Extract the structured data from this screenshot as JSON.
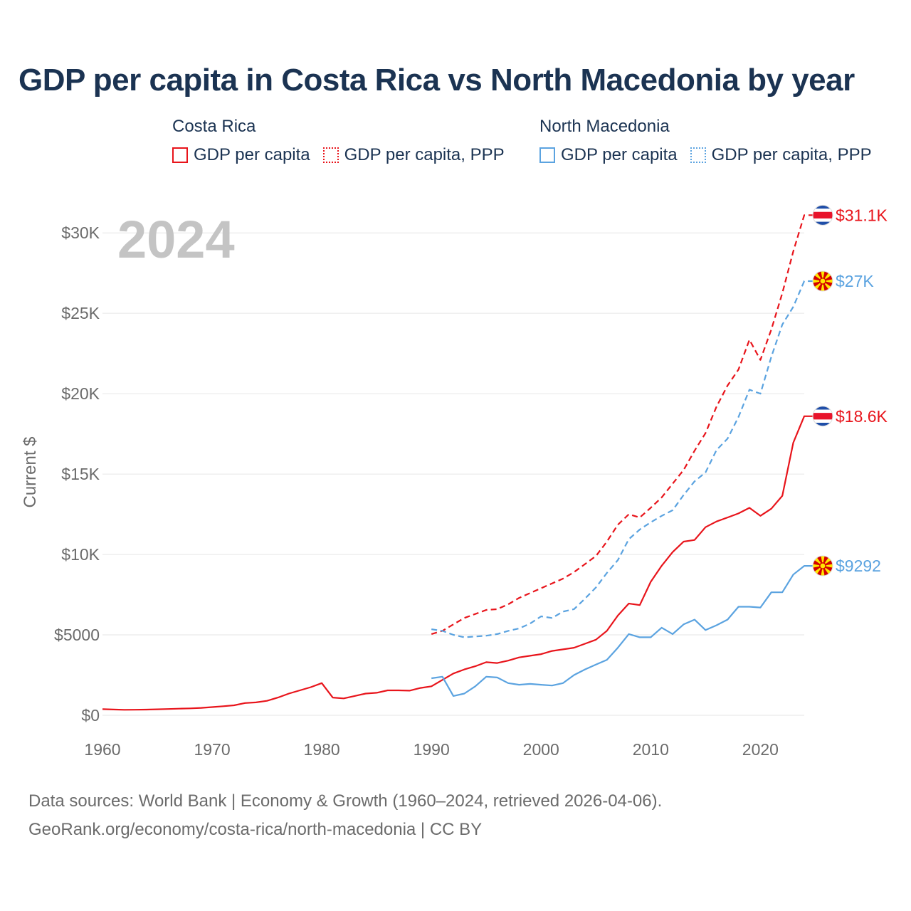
{
  "chart_data": {
    "type": "line",
    "title": "GDP per capita in Costa Rica vs North Macedonia by year",
    "year_label": "2024",
    "ylabel": "Current $",
    "xlabel": "",
    "xlim": [
      1960,
      2024
    ],
    "ylim": [
      0,
      32000
    ],
    "x_ticks": [
      1960,
      1970,
      1980,
      1990,
      2000,
      2010,
      2020
    ],
    "y_ticks": [
      {
        "value": 0,
        "label": "$0"
      },
      {
        "value": 5000,
        "label": "$5000"
      },
      {
        "value": 10000,
        "label": "$10K"
      },
      {
        "value": 15000,
        "label": "$15K"
      },
      {
        "value": 20000,
        "label": "$20K"
      },
      {
        "value": 25000,
        "label": "$25K"
      },
      {
        "value": 30000,
        "label": "$30K"
      }
    ],
    "groups": [
      {
        "name": "Costa Rica",
        "series_labels": [
          "GDP per capita",
          "GDP per capita, PPP"
        ]
      },
      {
        "name": "North Macedonia",
        "series_labels": [
          "GDP per capita",
          "GDP per capita, PPP"
        ]
      }
    ],
    "series": [
      {
        "name": "Costa Rica GDP per capita",
        "country": "Costa Rica",
        "flag": "costa-rica",
        "color": "#e8141b",
        "dash": "solid",
        "end_label": "$18.6K",
        "start_year": 1960,
        "values": [
          380,
          360,
          340,
          345,
          355,
          370,
          390,
          410,
          430,
          460,
          510,
          560,
          620,
          760,
          800,
          900,
          1100,
          1350,
          1550,
          1750,
          2000,
          1100,
          1050,
          1200,
          1350,
          1400,
          1550,
          1550,
          1530,
          1700,
          1800,
          2200,
          2600,
          2850,
          3050,
          3300,
          3250,
          3400,
          3600,
          3700,
          3800,
          4000,
          4100,
          4200,
          4450,
          4700,
          5250,
          6200,
          6950,
          6850,
          8300,
          9300,
          10150,
          10800,
          10900,
          11700,
          12050,
          12300,
          12550,
          12900,
          12400,
          12850,
          13650,
          16950,
          18600
        ]
      },
      {
        "name": "Costa Rica GDP per capita, PPP",
        "country": "Costa Rica",
        "flag": "costa-rica",
        "color": "#e8141b",
        "dash": "dashed",
        "end_label": "$31.1K",
        "start_year": 1990,
        "values": [
          5050,
          5250,
          5650,
          6050,
          6300,
          6550,
          6600,
          6900,
          7300,
          7600,
          7900,
          8200,
          8500,
          8900,
          9400,
          9900,
          10800,
          11850,
          12500,
          12300,
          12900,
          13550,
          14400,
          15250,
          16450,
          17550,
          19200,
          20500,
          21500,
          23350,
          22100,
          24000,
          26250,
          28850,
          31100
        ]
      },
      {
        "name": "North Macedonia GDP per capita",
        "country": "North Macedonia",
        "flag": "north-macedonia",
        "color": "#5ba3e0",
        "dash": "solid",
        "end_label": "$9292",
        "start_year": 1990,
        "values": [
          2300,
          2400,
          1200,
          1350,
          1800,
          2400,
          2350,
          2000,
          1900,
          1950,
          1900,
          1850,
          2000,
          2500,
          2850,
          3150,
          3450,
          4200,
          5050,
          4850,
          4850,
          5450,
          5050,
          5650,
          5950,
          5300,
          5600,
          5950,
          6750,
          6750,
          6700,
          7650,
          7650,
          8750,
          9292
        ]
      },
      {
        "name": "North Macedonia GDP per capita, PPP",
        "country": "North Macedonia",
        "flag": "north-macedonia",
        "color": "#5ba3e0",
        "dash": "dashed",
        "end_label": "$27K",
        "start_year": 1990,
        "values": [
          5350,
          5250,
          5000,
          4850,
          4900,
          4950,
          5050,
          5250,
          5400,
          5700,
          6150,
          6050,
          6450,
          6600,
          7250,
          7950,
          8850,
          9650,
          10950,
          11550,
          12000,
          12400,
          12750,
          13700,
          14550,
          15100,
          16500,
          17200,
          18550,
          20250,
          20000,
          22300,
          24300,
          25400,
          27000
        ]
      }
    ]
  },
  "footer": {
    "line1": "Data sources: World Bank | Economy & Growth (1960–2024, retrieved 2026-04-06).",
    "line2": "GeoRank.org/economy/costa-rica/north-macedonia | CC BY"
  }
}
